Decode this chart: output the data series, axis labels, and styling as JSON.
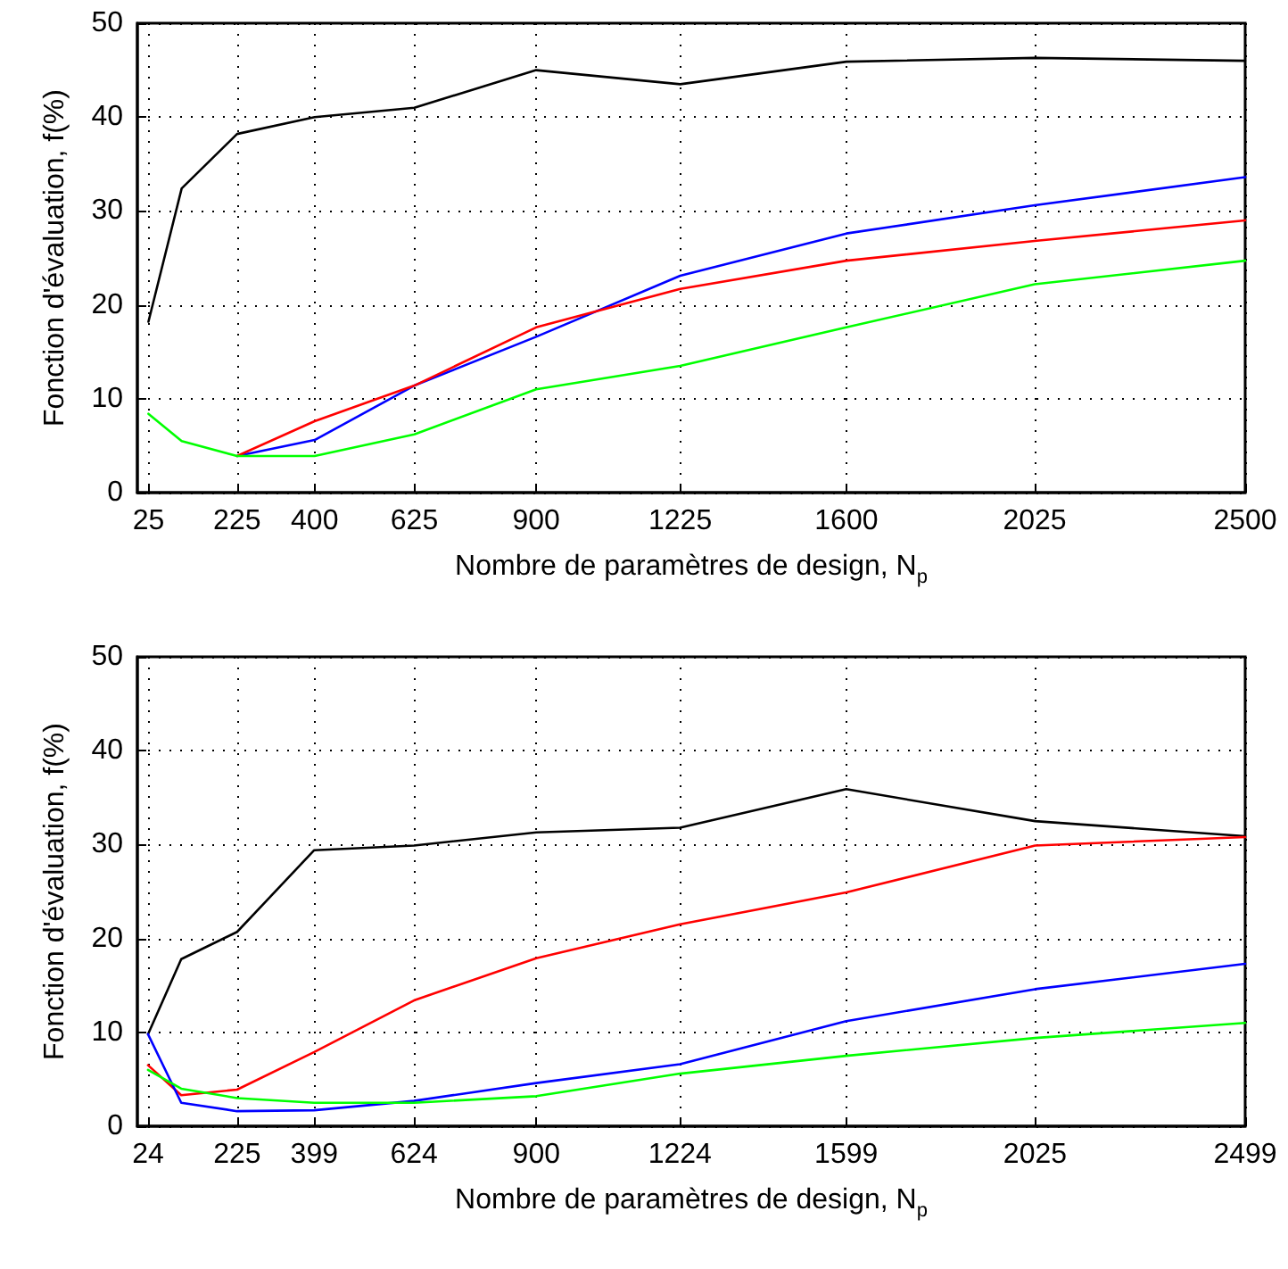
{
  "chart_data": [
    {
      "type": "line",
      "xlabel": "Nombre de paramètres de design, N$_{p}$",
      "ylabel": "Fonction d'évaluation, f(%)",
      "x": [
        25,
        100,
        225,
        400,
        625,
        900,
        1225,
        1600,
        2025,
        2500
      ],
      "xlim": [
        0,
        2500
      ],
      "xticks": [
        25,
        225,
        400,
        625,
        900,
        1225,
        1600,
        2025,
        2500
      ],
      "ylim": [
        0,
        50
      ],
      "yticks": [
        0,
        10,
        20,
        30,
        40,
        50
      ],
      "grid": true,
      "marker": "none",
      "line_style": "solid",
      "series": [
        {
          "color": "#000000",
          "values": [
            18.2,
            32.4,
            38.2,
            40.0,
            41.0,
            45.0,
            43.5,
            45.9,
            46.3,
            46.0
          ]
        },
        {
          "color": "#0000ff",
          "values": [
            null,
            null,
            3.9,
            5.6,
            11.4,
            16.6,
            23.1,
            27.6,
            30.6,
            33.6
          ]
        },
        {
          "color": "#ff0000",
          "values": [
            null,
            null,
            3.9,
            7.6,
            11.4,
            17.6,
            21.7,
            24.7,
            26.8,
            29.0
          ]
        },
        {
          "color": "#00ff00",
          "values": [
            8.4,
            5.5,
            3.9,
            3.9,
            6.2,
            11.0,
            13.5,
            17.6,
            22.2,
            24.7
          ]
        }
      ]
    },
    {
      "type": "line",
      "xlabel": "Nombre de paramètres de design, N$_{p}$",
      "ylabel": "Fonction d'évaluation, f(%)",
      "x": [
        24,
        99,
        225,
        399,
        624,
        900,
        1224,
        1599,
        2025,
        2499
      ],
      "xlim": [
        0,
        2499
      ],
      "xticks": [
        24,
        225,
        399,
        624,
        900,
        1224,
        1599,
        2025,
        2499
      ],
      "ylim": [
        0,
        50
      ],
      "yticks": [
        0,
        10,
        20,
        30,
        40,
        50
      ],
      "grid": true,
      "marker": "none",
      "line_style": "solid",
      "series": [
        {
          "color": "#000000",
          "values": [
            9.8,
            17.8,
            20.7,
            29.4,
            29.9,
            31.3,
            31.8,
            35.9,
            32.5,
            30.9
          ]
        },
        {
          "color": "#ff0000",
          "values": [
            6.5,
            3.3,
            3.9,
            7.9,
            13.4,
            17.9,
            21.5,
            24.9,
            29.9,
            30.8
          ]
        },
        {
          "color": "#0000ff",
          "values": [
            9.8,
            2.5,
            1.6,
            1.7,
            2.7,
            4.6,
            6.6,
            11.2,
            14.6,
            17.3
          ]
        },
        {
          "color": "#00ff00",
          "values": [
            6.0,
            4.0,
            3.0,
            2.5,
            2.5,
            3.2,
            5.6,
            7.5,
            9.4,
            11.0
          ]
        }
      ]
    }
  ]
}
